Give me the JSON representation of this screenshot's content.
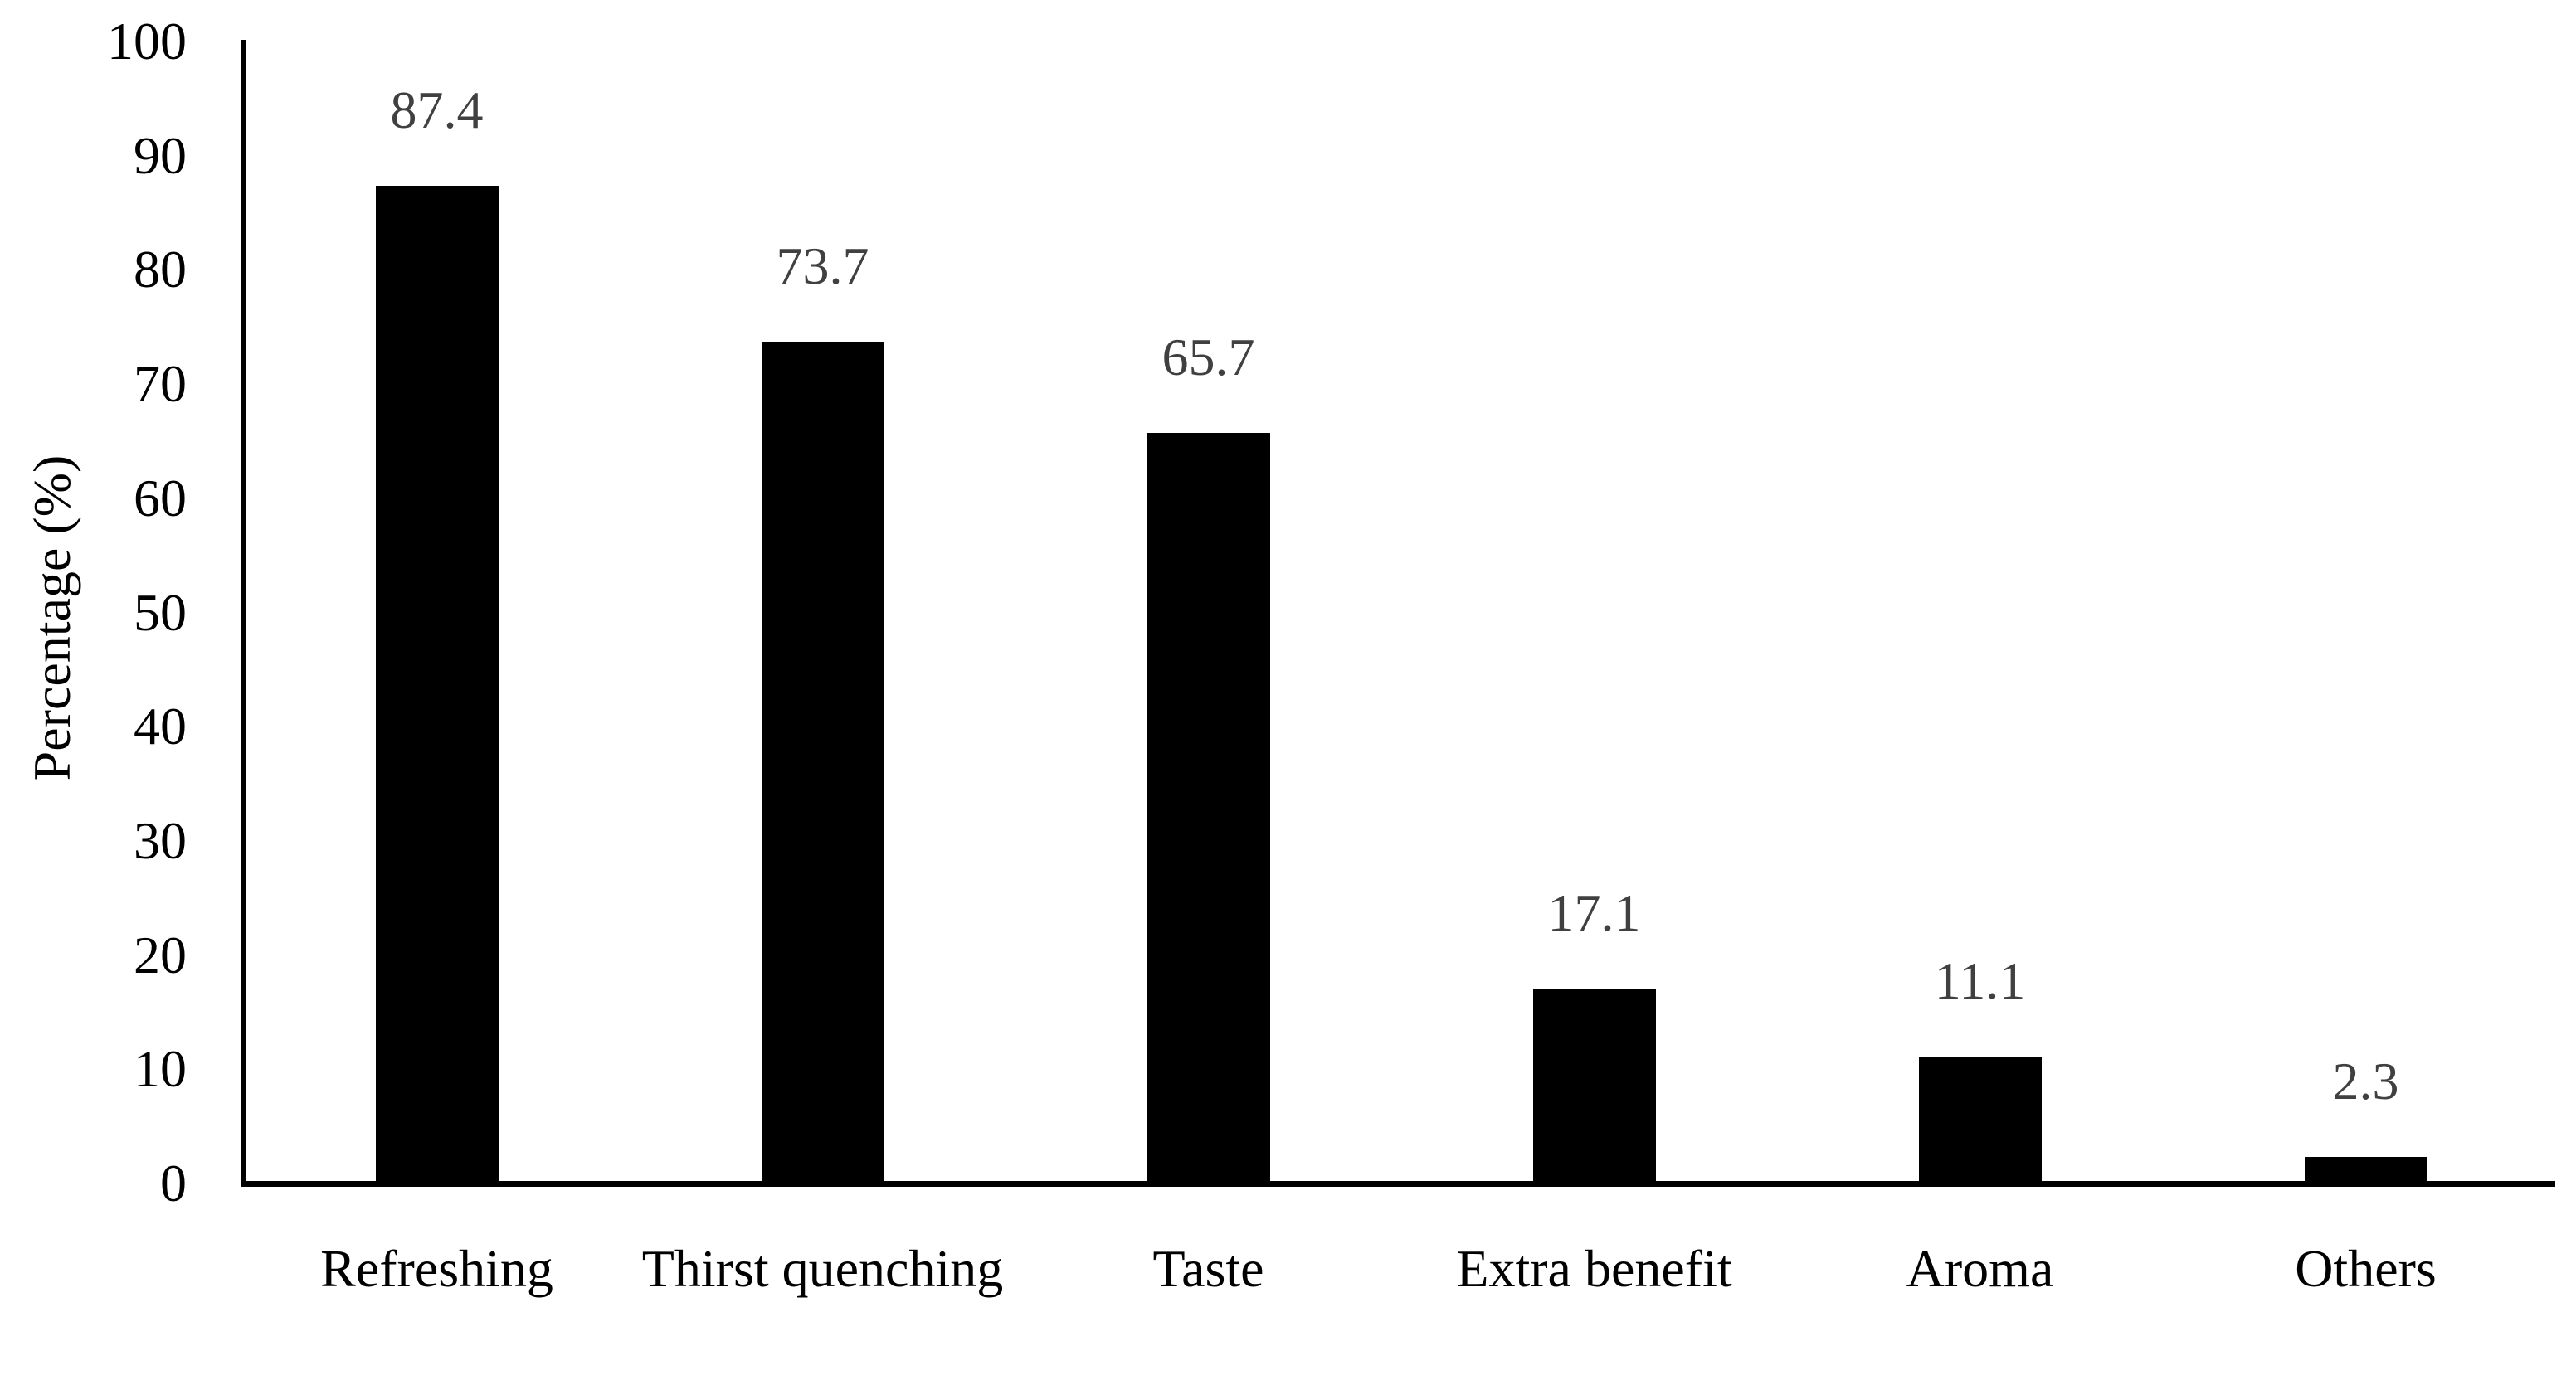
{
  "chart_data": {
    "type": "bar",
    "title": "",
    "categories": [
      "Refreshing",
      "Thirst quenching",
      "Taste",
      "Extra benefit",
      "Aroma",
      "Others"
    ],
    "values": [
      87.4,
      73.7,
      65.7,
      17.1,
      11.1,
      2.3
    ],
    "data_labels": [
      "87.4",
      "73.7",
      "65.7",
      "17.1",
      "11.1",
      "2.3"
    ],
    "xlabel": "",
    "ylabel": "Percentage (%)",
    "ylim": [
      0,
      100
    ],
    "ytick_interval": 10,
    "yticks": [
      "0",
      "10",
      "20",
      "30",
      "40",
      "50",
      "60",
      "70",
      "80",
      "90",
      "100"
    ],
    "grid": false,
    "legend": "none",
    "bar_color": "#000000",
    "data_label_color": "#404040",
    "axis_color": "#000000",
    "text_color": "#000000",
    "background_color": "#ffffff"
  }
}
